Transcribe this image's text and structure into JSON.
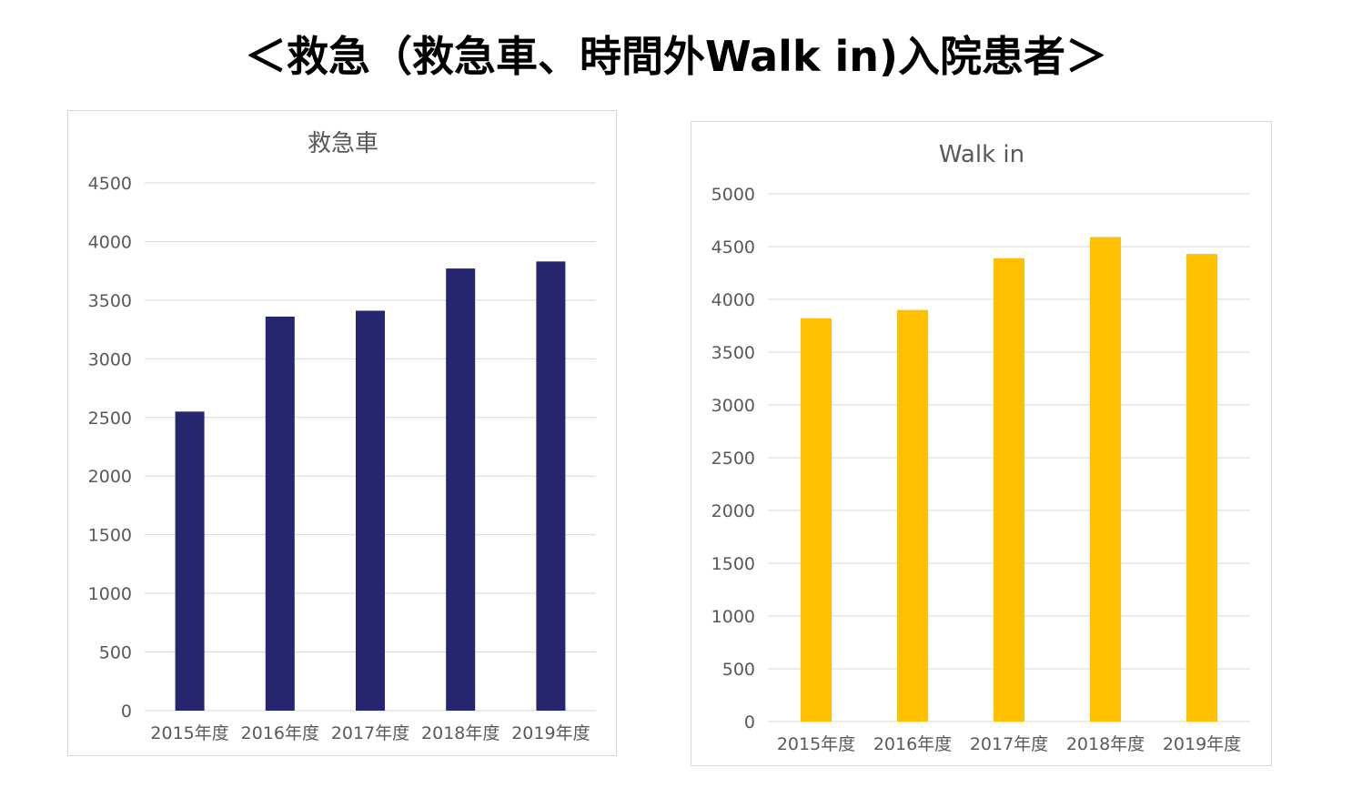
{
  "page": {
    "title": "＜救急（救急車、時間外Walk in)入院患者＞"
  },
  "chart_data": [
    {
      "type": "bar",
      "title": "救急車",
      "categories": [
        "2015年度",
        "2016年度",
        "2017年度",
        "2018年度",
        "2019年度"
      ],
      "values": [
        2550,
        3360,
        3410,
        3770,
        3830
      ],
      "ylim": [
        0,
        4500
      ],
      "ytick_step": 500,
      "xlabel": "",
      "ylabel": "",
      "grid": true,
      "color": "#262570"
    },
    {
      "type": "bar",
      "title": "Walk in",
      "categories": [
        "2015年度",
        "2016年度",
        "2017年度",
        "2018年度",
        "2019年度"
      ],
      "values": [
        3820,
        3900,
        4390,
        4590,
        4430
      ],
      "ylim": [
        0,
        5000
      ],
      "ytick_step": 500,
      "xlabel": "",
      "ylabel": "",
      "grid": true,
      "color": "#ffc000"
    }
  ]
}
